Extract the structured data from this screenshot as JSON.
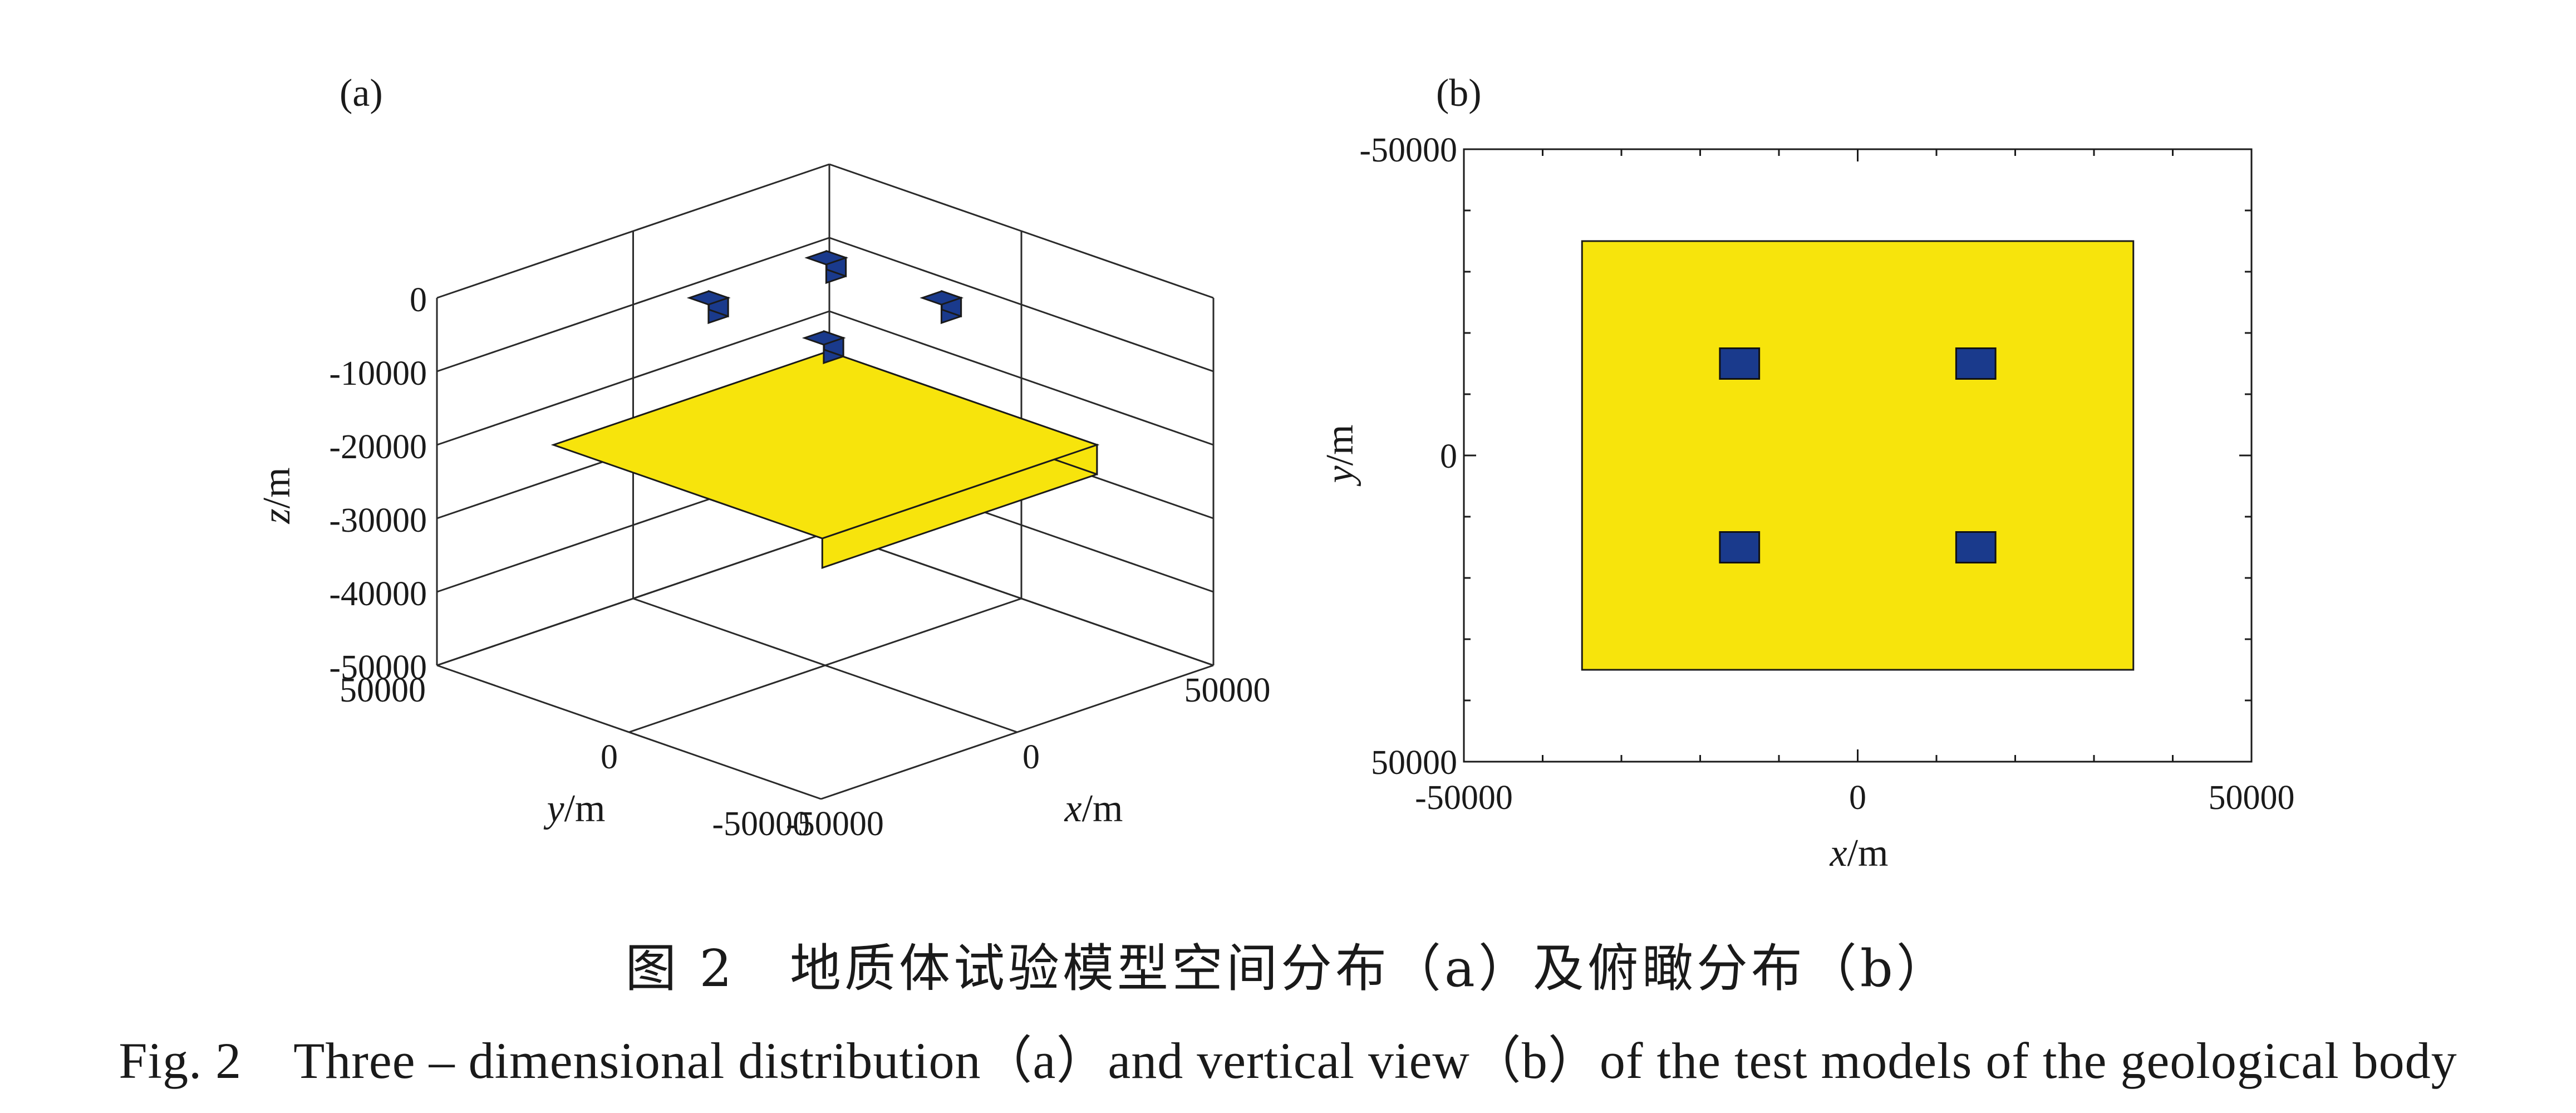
{
  "chart_data": [
    {
      "panel_label": "(a)",
      "type": "3d-box",
      "xlabel": "x/m",
      "ylabel": "y/m",
      "zlabel": "z/m",
      "xlim": [
        -50000,
        50000
      ],
      "ylim": [
        -50000,
        50000
      ],
      "zlim": [
        -50000,
        0
      ],
      "x_ticks": [
        -50000,
        0,
        50000
      ],
      "y_ticks": [
        -50000,
        0,
        50000
      ],
      "z_ticks": [
        0,
        -10000,
        -20000,
        -30000,
        -40000,
        -50000
      ],
      "x_tick_labels": [
        "-50000",
        "0",
        "50000"
      ],
      "y_tick_labels": [
        "-50000",
        "0",
        "50000"
      ],
      "z_tick_labels": [
        "0",
        "-10000",
        "-20000",
        "-30000",
        "-40000",
        "-50000"
      ],
      "grid": true,
      "slab": {
        "x": [
          -35000,
          35000
        ],
        "y": [
          -35000,
          35000
        ],
        "z": [
          -24000,
          -20000
        ],
        "color": "#f7e40c"
      },
      "cubes": [
        {
          "x": [
            -17500,
            -12500
          ],
          "y": [
            -17500,
            -12500
          ],
          "z": [
            -2500,
            0
          ]
        },
        {
          "x": [
            12500,
            17500
          ],
          "y": [
            -17500,
            -12500
          ],
          "z": [
            -2500,
            0
          ]
        },
        {
          "x": [
            -17500,
            -12500
          ],
          "y": [
            12500,
            17500
          ],
          "z": [
            -2500,
            0
          ]
        },
        {
          "x": [
            12500,
            17500
          ],
          "y": [
            12500,
            17500
          ],
          "z": [
            -2500,
            0
          ]
        }
      ],
      "cube_color": "#1a3a8c"
    },
    {
      "panel_label": "(b)",
      "type": "top-view",
      "xlabel": "x/m",
      "ylabel": "y/m",
      "xlim": [
        -50000,
        50000
      ],
      "ylim": [
        -50000,
        50000
      ],
      "x_ticks": [
        -50000,
        0,
        50000
      ],
      "y_ticks": [
        -50000,
        0,
        50000
      ],
      "x_tick_labels": [
        "-50000",
        "0",
        "50000"
      ],
      "y_tick_labels": [
        "-50000",
        "0",
        "50000"
      ],
      "y_reversed": true,
      "grid": false,
      "rectangle": {
        "x": [
          -35000,
          35000
        ],
        "y": [
          -35000,
          35000
        ],
        "color": "#f7e40c"
      },
      "squares": [
        {
          "x": [
            -17500,
            -12500
          ],
          "y": [
            -17500,
            -12500
          ]
        },
        {
          "x": [
            12500,
            17500
          ],
          "y": [
            -17500,
            -12500
          ]
        },
        {
          "x": [
            -17500,
            -12500
          ],
          "y": [
            12500,
            17500
          ]
        },
        {
          "x": [
            12500,
            17500
          ],
          "y": [
            12500,
            17500
          ]
        }
      ],
      "square_color": "#1a3a8c"
    }
  ],
  "caption_cn": "图 2　地质体试验模型空间分布（a）及俯瞰分布（b）",
  "caption_en": "Fig. 2　Three – dimensional distribution（a）and vertical view（b）of the test models of the geological body"
}
